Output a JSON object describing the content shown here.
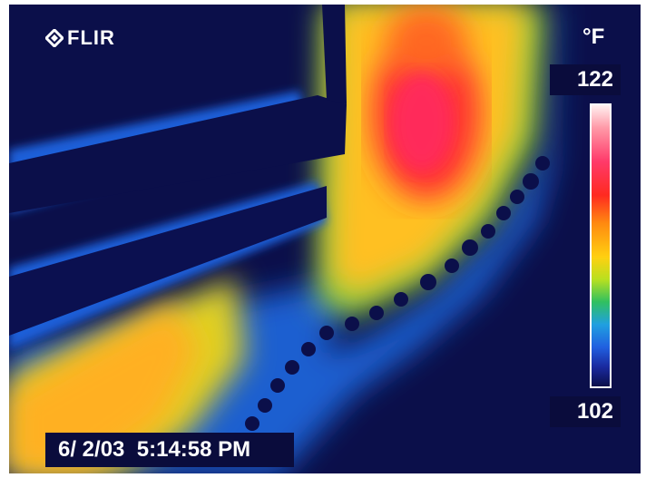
{
  "brand": {
    "logo_text": "FLIR",
    "logo_icon": "flir-diamond-icon"
  },
  "scale": {
    "unit": "°F",
    "max": "122",
    "min": "102"
  },
  "timestamp": {
    "date": "6/ 2/03",
    "time": "5:14:58 PM"
  }
}
